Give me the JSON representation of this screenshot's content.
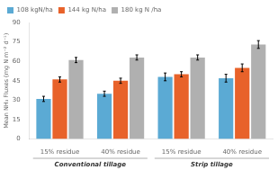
{
  "chart_data": {
    "type": "bar",
    "categories": [
      "15% residue",
      "40% residue",
      "15% residue",
      "40% residue"
    ],
    "section_labels": [
      "Conventional tillage",
      "Strip tillage"
    ],
    "series": [
      {
        "name": "108 kgN/ha",
        "color": "#5BAAD4",
        "values": [
          31,
          35,
          48,
          47
        ],
        "errors": [
          2,
          2,
          3,
          3
        ]
      },
      {
        "name": "144 kg N/ha",
        "color": "#E8622A",
        "values": [
          46,
          45,
          50,
          55
        ],
        "errors": [
          2,
          2,
          2,
          3
        ]
      },
      {
        "name": "180 kg N /ha",
        "color": "#B0B0B0",
        "values": [
          61,
          63,
          63,
          73
        ],
        "errors": [
          2,
          2,
          2,
          3
        ]
      }
    ],
    "ylabel": "Mean NH₃ Fluxes (mg N m⁻² d⁻¹)",
    "ylim": [
      0,
      90
    ],
    "yticks": [
      0,
      15,
      30,
      45,
      60,
      75,
      90
    ],
    "grid": false,
    "legend": "upper left"
  }
}
